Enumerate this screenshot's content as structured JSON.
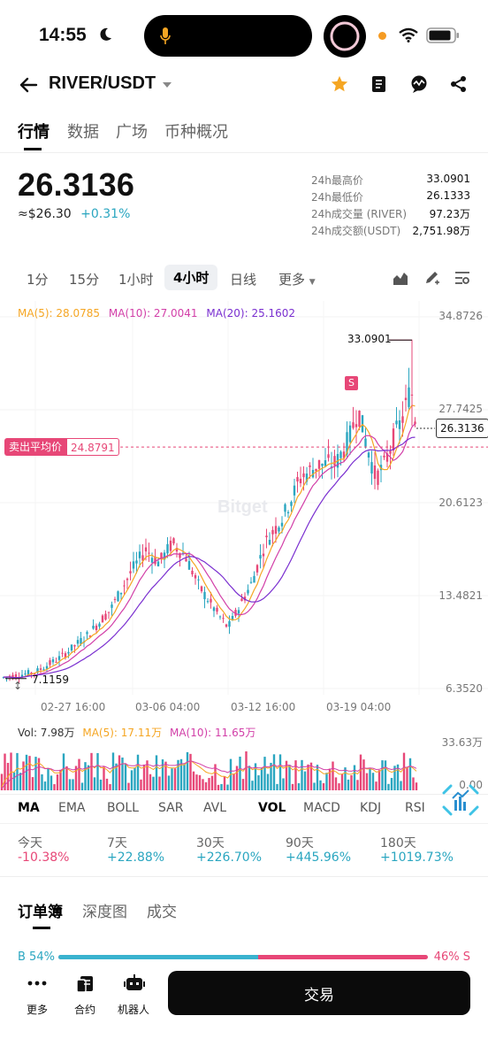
{
  "status": {
    "time": "14:55"
  },
  "header": {
    "pair": "RIVER/USDT"
  },
  "tabs": [
    "行情",
    "数据",
    "广场",
    "币种概况"
  ],
  "price": {
    "last": "26.3136",
    "fiat": "≈$26.30",
    "change": "+0.31%"
  },
  "stats": [
    {
      "label": "24h最高价",
      "value": "33.0901"
    },
    {
      "label": "24h最低价",
      "value": "26.1333"
    },
    {
      "label": "24h成交量 (RIVER)",
      "value": "97.23万"
    },
    {
      "label": "24h成交额(USDT)",
      "value": "2,751.98万"
    }
  ],
  "timeframes": [
    "1分",
    "15分",
    "1小时",
    "4小时",
    "日线",
    "更多"
  ],
  "chart": {
    "ma_legend": {
      "ma5": "MA(5): 28.0785",
      "ma10": "MA(10): 27.0041",
      "ma20": "MA(20): 25.1602"
    },
    "y_ticks": [
      "34.8726",
      "27.7425",
      "20.6123",
      "13.4821",
      "6.3520"
    ],
    "x_ticks": [
      "02-27 16:00",
      "03-06 04:00",
      "03-12 16:00",
      "03-19 04:00"
    ],
    "high_label": "33.0901",
    "low_label": "7.1159",
    "current_tag": "26.3136",
    "sell_avg_label": "卖出平均价",
    "sell_avg_value": "24.8791",
    "s_marker": "S",
    "watermark": "Bitget"
  },
  "volume": {
    "legend": {
      "vol": "Vol: 7.98万",
      "ma5": "MA(5): 17.11万",
      "ma10": "MA(10): 11.65万"
    },
    "y_ticks": [
      "33.63万",
      "0.00"
    ]
  },
  "indicators": [
    "MA",
    "EMA",
    "BOLL",
    "SAR",
    "AVL",
    "VOL",
    "MACD",
    "KDJ",
    "RSI"
  ],
  "performance": [
    {
      "label": "今天",
      "value": "-10.38%"
    },
    {
      "label": "7天",
      "value": "+22.88%"
    },
    {
      "label": "30天",
      "value": "+226.70%"
    },
    {
      "label": "90天",
      "value": "+445.96%"
    },
    {
      "label": "180天",
      "value": "+1019.73%"
    }
  ],
  "orderbook_tabs": [
    "订单簿",
    "深度图",
    "成交"
  ],
  "ratio": {
    "buy": "B 54%",
    "sell": "46% S",
    "buy_fraction": 0.54
  },
  "bottom_nav": [
    "更多",
    "合约",
    "机器人"
  ],
  "trade_button": "交易",
  "colors": {
    "up": "#2aa6c0",
    "down": "#e74777",
    "ma5": "#f5a623",
    "ma10": "#d23fa8",
    "ma20": "#7a2fd0",
    "star": "#f5a623"
  }
}
